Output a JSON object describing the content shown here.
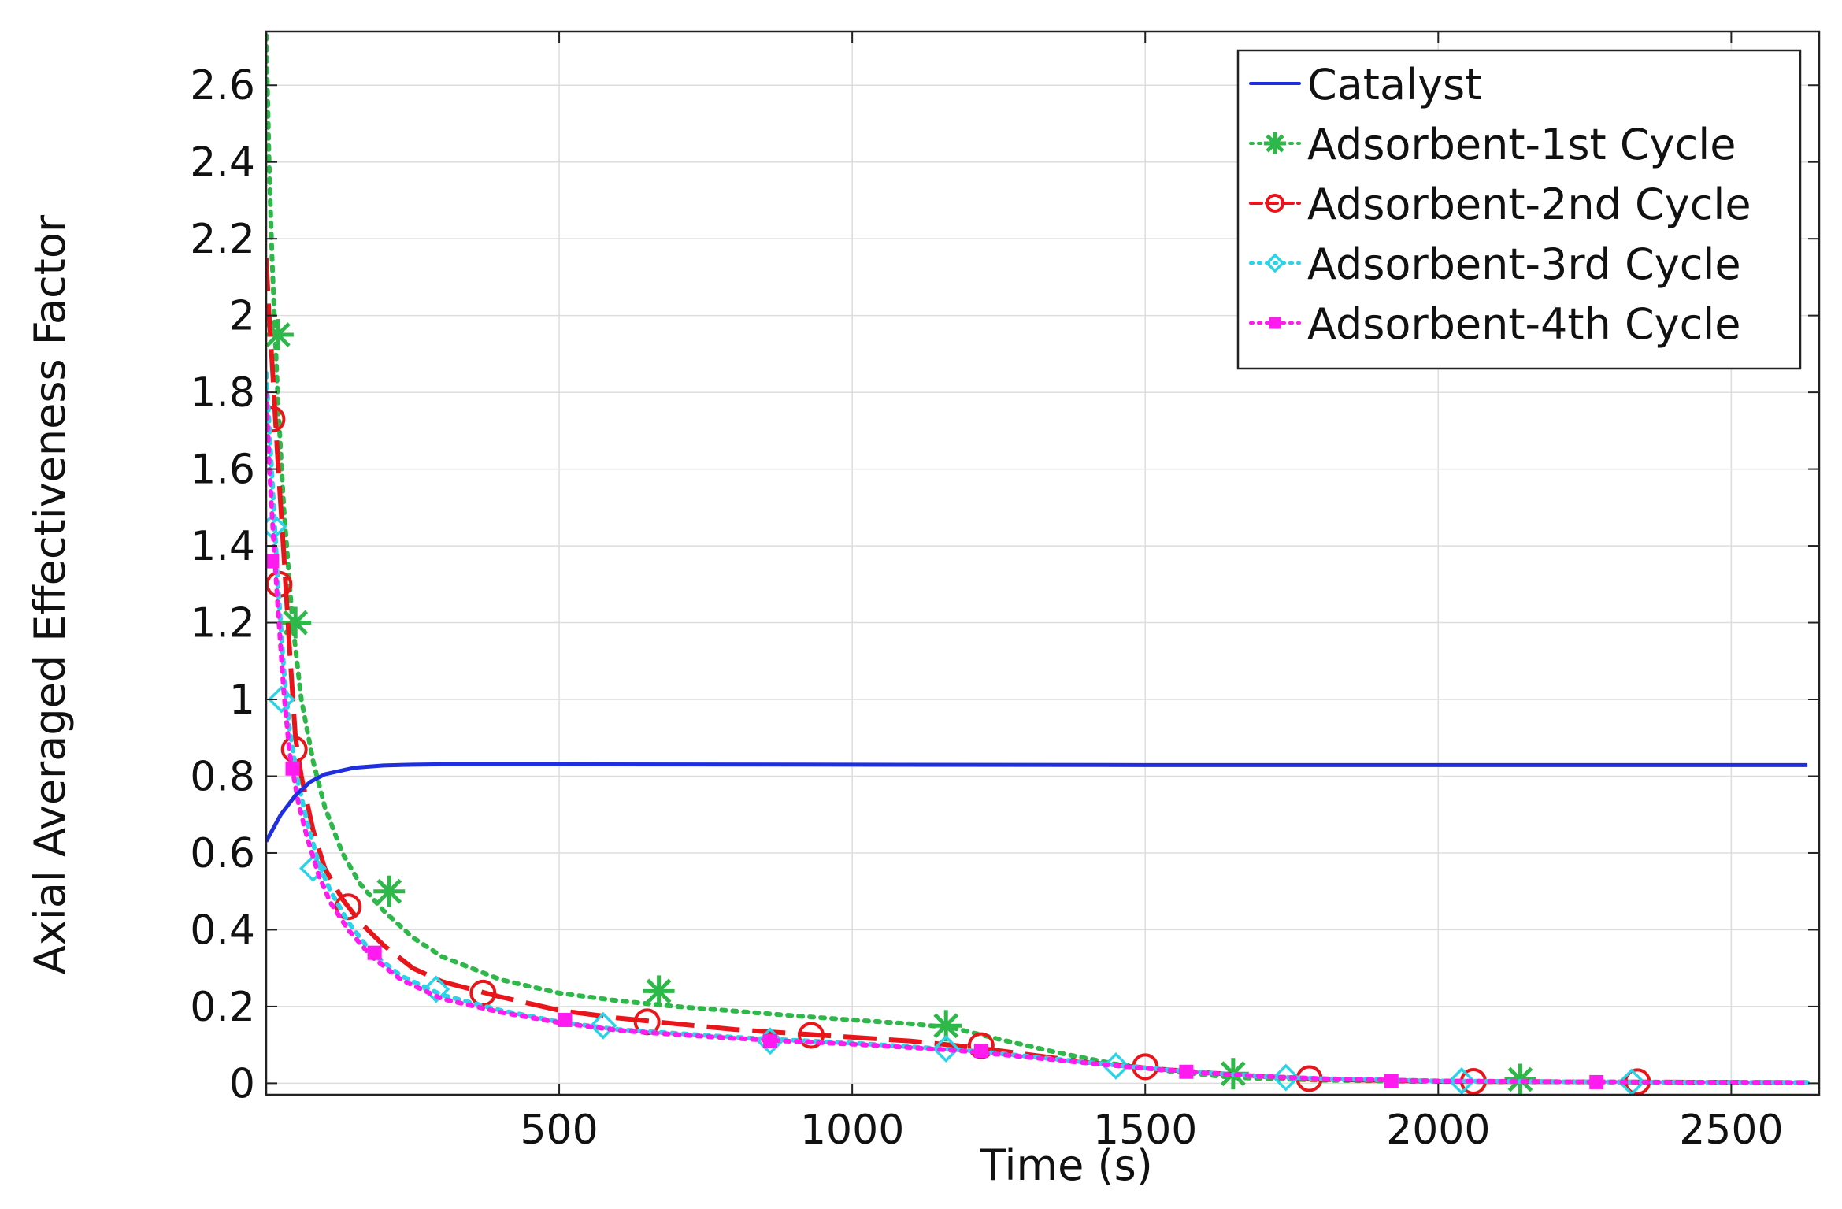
{
  "chart_data": {
    "type": "line",
    "title": "",
    "xlabel": "Time (s)",
    "ylabel": "Axial Averaged Effectiveness Factor",
    "xlim": [
      0,
      2650
    ],
    "ylim": [
      -0.03,
      2.74
    ],
    "xticks": [
      500,
      1000,
      1500,
      2000,
      2500
    ],
    "yticks": [
      0,
      0.2,
      0.4,
      0.6,
      0.8,
      1,
      1.2,
      1.4,
      1.6,
      1.8,
      2,
      2.2,
      2.4,
      2.6
    ],
    "xtick_labels": [
      "500",
      "1000",
      "1500",
      "2000",
      "2500"
    ],
    "ytick_labels": [
      "0",
      "0.2",
      "0.4",
      "0.6",
      "0.8",
      "1",
      "1.2",
      "1.4",
      "1.6",
      "1.8",
      "2",
      "2.2",
      "2.4",
      "2.6"
    ],
    "grid": true,
    "legend_position": "top-right",
    "series": [
      {
        "name": "Catalyst",
        "color": "#1f2fe0",
        "style": "solid",
        "marker": "none",
        "x": [
          0,
          25,
          50,
          75,
          100,
          150,
          200,
          250,
          300,
          400,
          500,
          1000,
          1500,
          2000,
          2500,
          2630
        ],
        "y": [
          0.63,
          0.7,
          0.75,
          0.785,
          0.805,
          0.822,
          0.828,
          0.83,
          0.831,
          0.831,
          0.831,
          0.83,
          0.829,
          0.829,
          0.829,
          0.829
        ],
        "markers_x": [],
        "markers_y": []
      },
      {
        "name": "Adsorbent-1st Cycle",
        "color": "#2fb84a",
        "style": "dotted",
        "marker": "asterisk",
        "x": [
          0,
          5,
          10,
          15,
          20,
          30,
          45,
          60,
          80,
          100,
          130,
          160,
          200,
          250,
          300,
          400,
          500,
          600,
          700,
          800,
          900,
          1000,
          1100,
          1170,
          1250,
          1350,
          1450,
          1550,
          1650,
          1800,
          1950,
          2100,
          2300,
          2500,
          2630
        ],
        "y": [
          2.73,
          2.4,
          2.15,
          1.96,
          1.78,
          1.5,
          1.2,
          1.0,
          0.84,
          0.72,
          0.6,
          0.52,
          0.45,
          0.38,
          0.33,
          0.27,
          0.235,
          0.215,
          0.2,
          0.188,
          0.176,
          0.165,
          0.155,
          0.145,
          0.115,
          0.08,
          0.05,
          0.03,
          0.015,
          0.008,
          0.005,
          0.004,
          0.003,
          0.002,
          0.002
        ],
        "markers_x": [
          20,
          50,
          210,
          670,
          1160,
          1650,
          2140
        ],
        "markers_y": [
          1.95,
          1.2,
          0.5,
          0.24,
          0.15,
          0.025,
          0.01
        ]
      },
      {
        "name": "Adsorbent-2nd Cycle",
        "color": "#e8151b",
        "style": "dashed",
        "marker": "circle",
        "x": [
          0,
          5,
          10,
          20,
          30,
          40,
          50,
          60,
          80,
          100,
          130,
          160,
          200,
          250,
          300,
          400,
          500,
          600,
          700,
          800,
          900,
          1000,
          1100,
          1200,
          1300,
          1400,
          1500,
          1600,
          1700,
          1800,
          2000,
          2200,
          2400,
          2630
        ],
        "y": [
          2.15,
          2.0,
          1.88,
          1.62,
          1.38,
          1.13,
          0.9,
          0.8,
          0.66,
          0.56,
          0.48,
          0.42,
          0.36,
          0.3,
          0.265,
          0.225,
          0.19,
          0.17,
          0.155,
          0.14,
          0.13,
          0.12,
          0.11,
          0.095,
          0.075,
          0.055,
          0.04,
          0.028,
          0.018,
          0.01,
          0.005,
          0.004,
          0.003,
          0.002
        ],
        "markers_x": [
          10,
          22,
          48,
          140,
          370,
          650,
          930,
          1220,
          1500,
          1780,
          2060,
          2340
        ],
        "markers_y": [
          1.73,
          1.3,
          0.87,
          0.46,
          0.235,
          0.16,
          0.125,
          0.098,
          0.043,
          0.012,
          0.005,
          0.004
        ]
      },
      {
        "name": "Adsorbent-3rd Cycle",
        "color": "#29d3e8",
        "style": "dotted",
        "marker": "diamond",
        "x": [
          0,
          5,
          10,
          20,
          30,
          40,
          55,
          70,
          90,
          110,
          140,
          180,
          230,
          300,
          400,
          500,
          600,
          700,
          800,
          900,
          1000,
          1100,
          1200,
          1300,
          1400,
          1500,
          1600,
          1700,
          1800,
          2000,
          2200,
          2400,
          2630
        ],
        "y": [
          1.85,
          1.72,
          1.58,
          1.3,
          1.08,
          0.92,
          0.78,
          0.68,
          0.57,
          0.5,
          0.42,
          0.34,
          0.28,
          0.23,
          0.19,
          0.16,
          0.14,
          0.13,
          0.12,
          0.112,
          0.105,
          0.095,
          0.085,
          0.07,
          0.055,
          0.04,
          0.028,
          0.018,
          0.012,
          0.006,
          0.004,
          0.003,
          0.002
        ],
        "markers_x": [
          12,
          26,
          80,
          290,
          575,
          860,
          1160,
          1450,
          1740,
          2040,
          2330
        ],
        "markers_y": [
          1.45,
          1.0,
          0.56,
          0.245,
          0.15,
          0.11,
          0.09,
          0.045,
          0.015,
          0.006,
          0.003
        ]
      },
      {
        "name": "Adsorbent-4th Cycle",
        "color": "#ff1bf0",
        "style": "dotted",
        "marker": "square",
        "x": [
          0,
          5,
          10,
          20,
          30,
          40,
          55,
          70,
          90,
          110,
          140,
          180,
          230,
          300,
          400,
          500,
          600,
          700,
          800,
          900,
          1000,
          1100,
          1200,
          1300,
          1400,
          1500,
          1600,
          1700,
          1800,
          2000,
          2200,
          2400,
          2630
        ],
        "y": [
          1.8,
          1.62,
          1.48,
          1.24,
          1.02,
          0.86,
          0.73,
          0.64,
          0.54,
          0.47,
          0.4,
          0.33,
          0.27,
          0.22,
          0.185,
          0.158,
          0.138,
          0.127,
          0.117,
          0.109,
          0.102,
          0.093,
          0.083,
          0.068,
          0.053,
          0.039,
          0.027,
          0.018,
          0.012,
          0.006,
          0.004,
          0.003,
          0.002
        ],
        "markers_x": [
          10,
          45,
          185,
          510,
          860,
          1220,
          1570,
          1920,
          2270
        ],
        "markers_y": [
          1.36,
          0.82,
          0.34,
          0.165,
          0.11,
          0.085,
          0.03,
          0.006,
          0.003
        ]
      }
    ]
  }
}
